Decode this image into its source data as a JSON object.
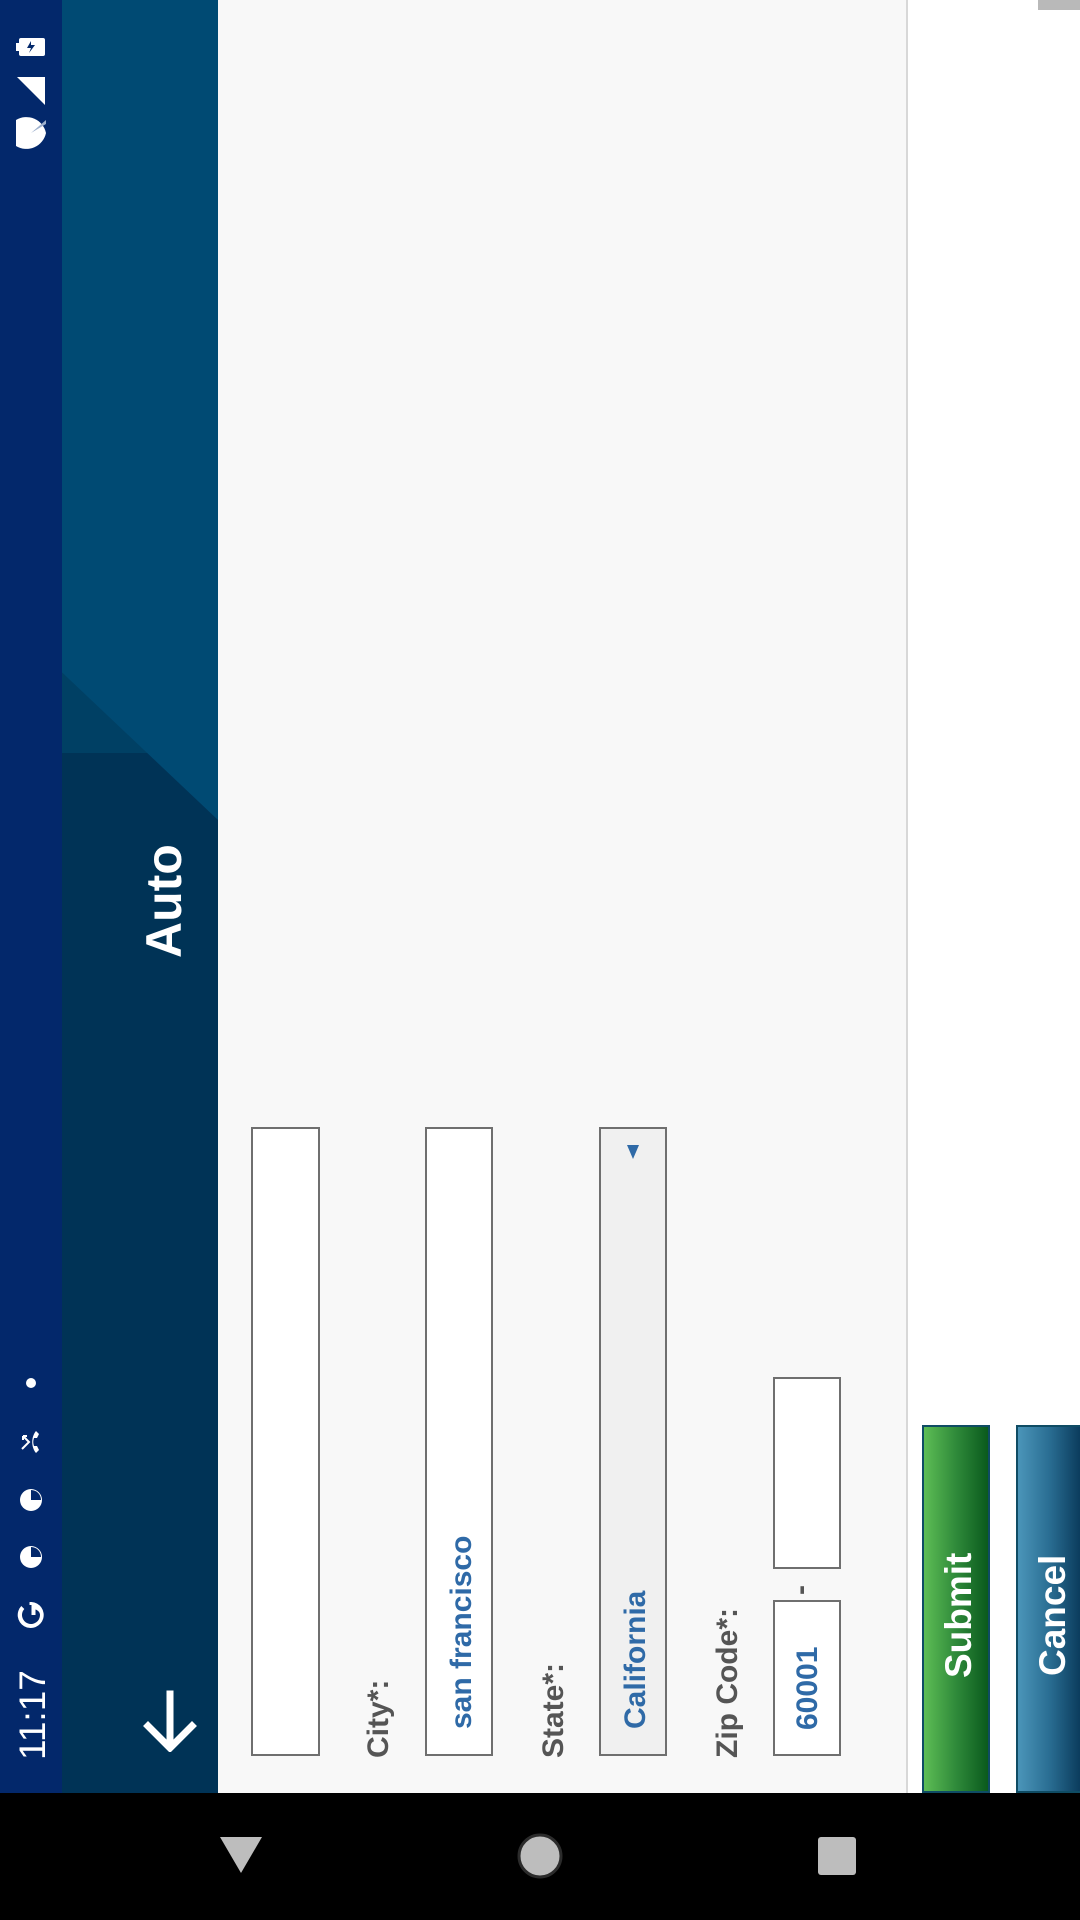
{
  "status_bar": {
    "time": "11:17",
    "icons": [
      "google-icon",
      "notification-icon",
      "notification-icon",
      "missed-call-icon",
      "more-dot-icon",
      "wifi-icon",
      "signal-icon",
      "battery-icon"
    ]
  },
  "app_bar": {
    "title": "Auto",
    "back_icon": "arrow-back-icon"
  },
  "form": {
    "address_line2": {
      "value": ""
    },
    "city": {
      "label": "City*:",
      "value": "san francisco"
    },
    "state": {
      "label": "State*:",
      "value": "California"
    },
    "zip": {
      "label": "Zip Code*:",
      "value": "60001",
      "separator": "-",
      "extension_value": ""
    }
  },
  "buttons": {
    "submit": "Submit",
    "cancel": "Cancel"
  },
  "nav_bar": {
    "icons": [
      "back-triangle-icon",
      "home-circle-icon",
      "recents-square-icon"
    ]
  },
  "colors": {
    "status_bar": "#03286b",
    "app_bar": "#004064",
    "accent_text": "#2f6aa7",
    "submit": "#2f8a3a",
    "cancel": "#2a6e93"
  }
}
